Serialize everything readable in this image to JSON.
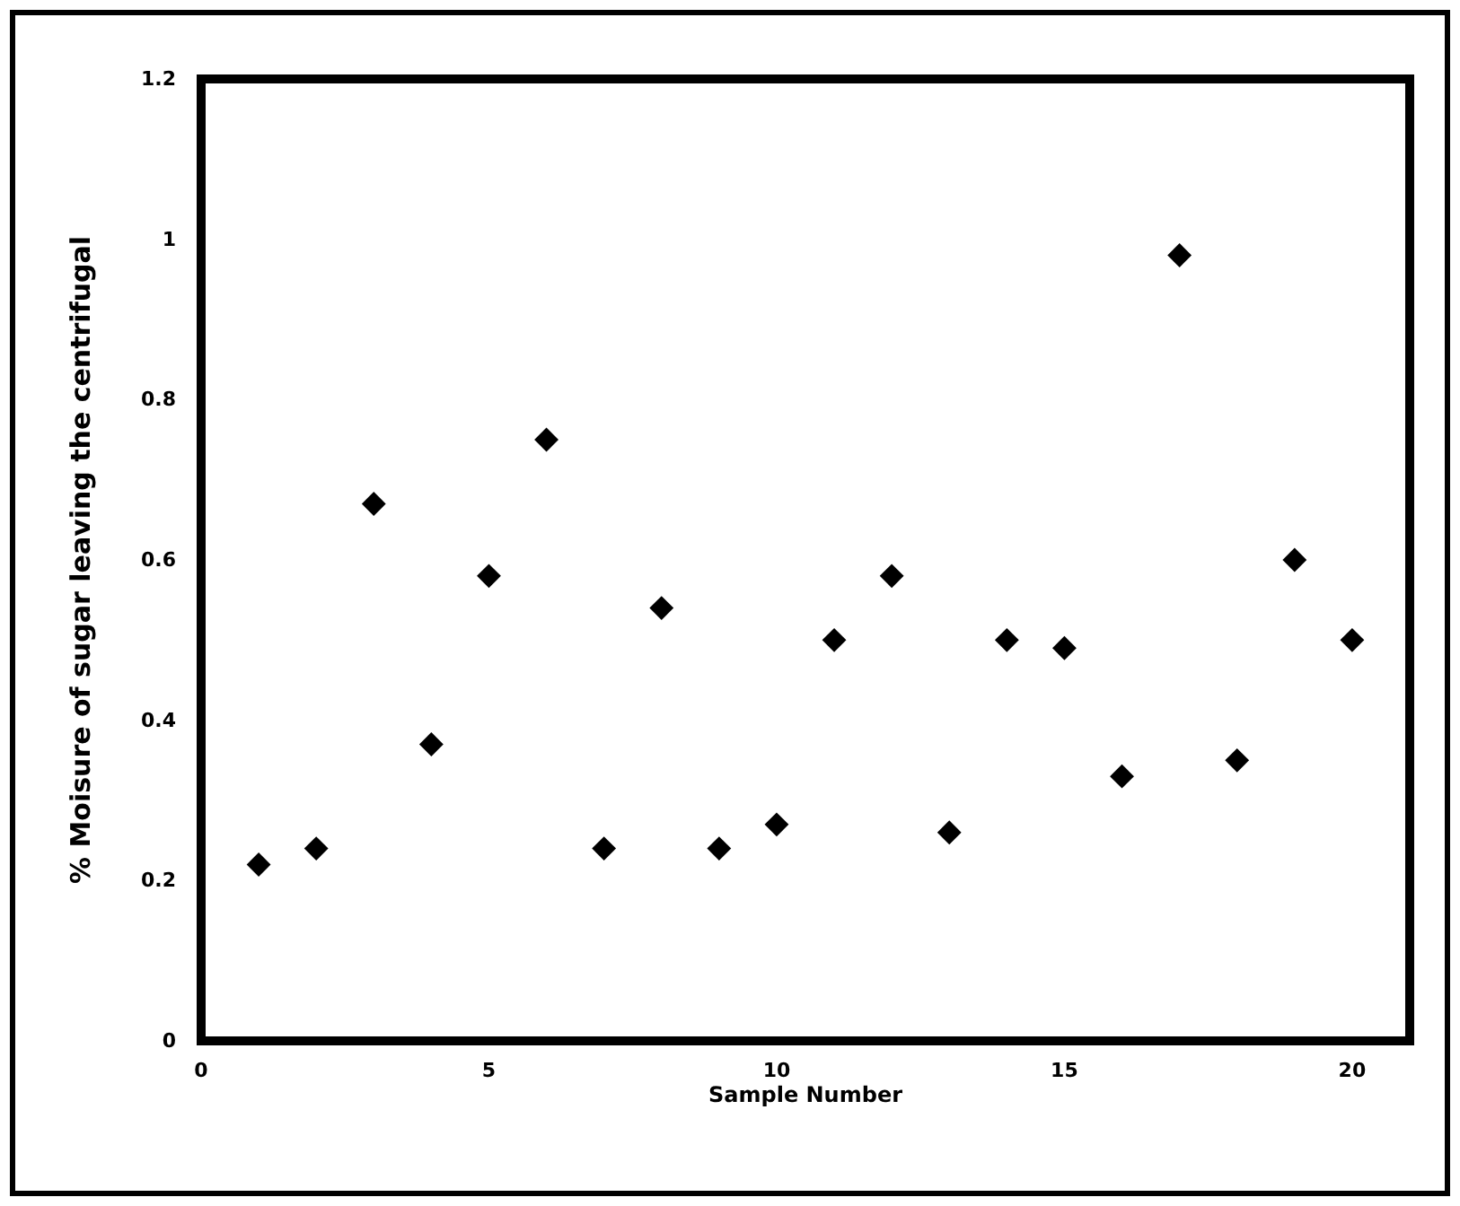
{
  "chart_data": {
    "type": "scatter",
    "xlabel": "Sample Number",
    "ylabel": "% Moisure of sugar leaving the centrifugal",
    "x": [
      1,
      2,
      3,
      4,
      5,
      6,
      7,
      8,
      9,
      10,
      11,
      12,
      13,
      14,
      15,
      16,
      17,
      18,
      19,
      20
    ],
    "series": [
      {
        "color": "#000000",
        "values": [
          0.22,
          0.24,
          0.67,
          0.37,
          0.58,
          0.75,
          0.24,
          0.54,
          0.24,
          0.27,
          0.5,
          0.58,
          0.26,
          0.5,
          0.49,
          0.33,
          0.98,
          0.35,
          0.6,
          0.5
        ]
      }
    ],
    "xlim": [
      0,
      21
    ],
    "xticks": [
      0,
      5,
      10,
      15,
      20
    ],
    "ylim": [
      0,
      1.2
    ],
    "yticks": [
      0,
      0.2,
      0.4,
      0.6,
      0.8,
      1,
      1.2
    ],
    "marker": "diamond",
    "grid": false
  }
}
